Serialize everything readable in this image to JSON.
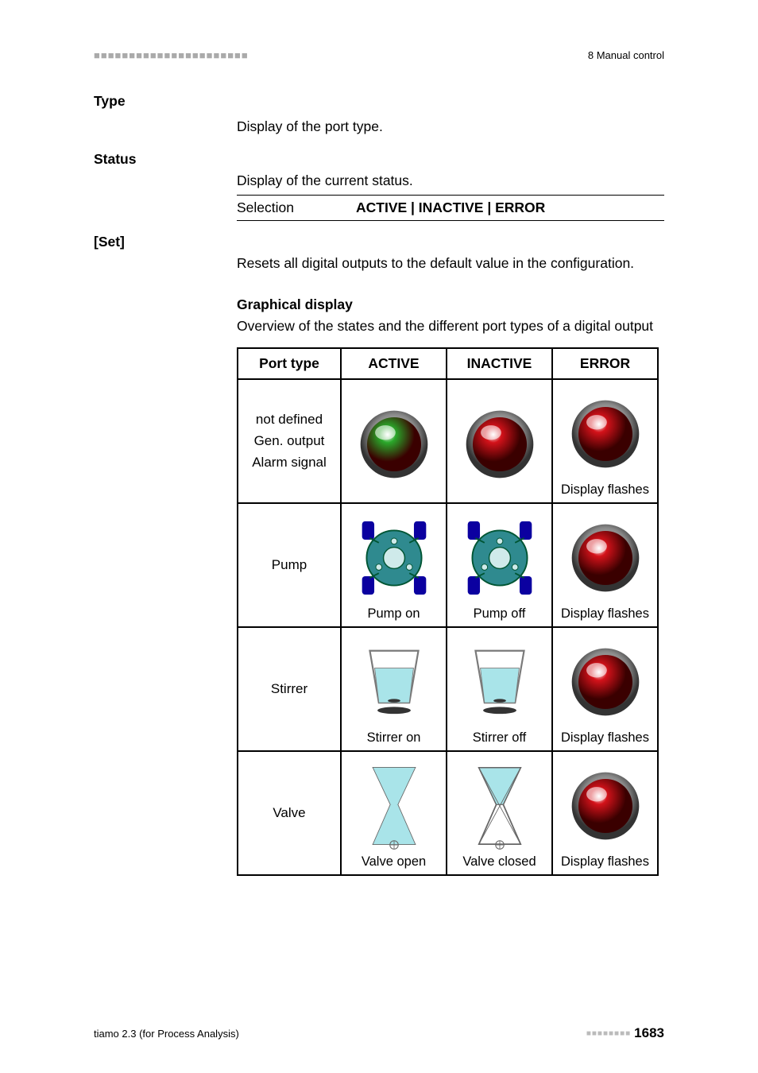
{
  "header": {
    "right": "8 Manual control",
    "dot_color": "#b0b0b0"
  },
  "defs": [
    {
      "term": "Type",
      "desc": "Display of the port type."
    },
    {
      "term": "Status",
      "desc": "Display of the current status.",
      "selection_label": "Selection",
      "selection_value": "ACTIVE | INACTIVE | ERROR"
    },
    {
      "term": "[Set]",
      "desc": "Resets all digital outputs to the default value in the configuration."
    }
  ],
  "graphical": {
    "heading": "Graphical display",
    "sub": "Overview of the states and the different port types of a digital output",
    "cols": [
      "Port type",
      "ACTIVE",
      "INACTIVE",
      "ERROR"
    ],
    "rows": [
      {
        "label_lines": [
          "not defined",
          "Gen. output",
          "Alarm signal"
        ],
        "cells": [
          {
            "icon": "led",
            "color": "#2aa82a",
            "caption": ""
          },
          {
            "icon": "led",
            "color": "#d4121a",
            "caption": ""
          },
          {
            "icon": "led",
            "color": "#d4121a",
            "caption": "Display flashes"
          }
        ]
      },
      {
        "label_lines": [
          "Pump"
        ],
        "cells": [
          {
            "icon": "pump",
            "body": "#2f8a8f",
            "ports": "#0b00a0",
            "caption": "Pump on"
          },
          {
            "icon": "pump",
            "body": "#2f8a8f",
            "ports": "#0b00a0",
            "caption": "Pump off"
          },
          {
            "icon": "led",
            "color": "#d4121a",
            "caption": "Display flashes"
          }
        ]
      },
      {
        "label_lines": [
          "Stirrer"
        ],
        "cells": [
          {
            "icon": "stirrer",
            "liquid": "#a9e4e9",
            "vessel": "#7a7a7a",
            "caption": "Stirrer on"
          },
          {
            "icon": "stirrer",
            "liquid": "#a9e4e9",
            "vessel": "#7a7a7a",
            "caption": "Stirrer off"
          },
          {
            "icon": "led",
            "color": "#d4121a",
            "caption": "Display flashes"
          }
        ]
      },
      {
        "label_lines": [
          "Valve"
        ],
        "cells": [
          {
            "icon": "valve",
            "liquid": "#a9e4e9",
            "outline": "#666",
            "open": true,
            "caption": "Valve open"
          },
          {
            "icon": "valve",
            "liquid": "#a9e4e9",
            "outline": "#666",
            "open": false,
            "caption": "Valve closed"
          },
          {
            "icon": "led",
            "color": "#d4121a",
            "caption": "Display flashes"
          }
        ]
      }
    ]
  },
  "footer": {
    "left": "tiamo 2.3 (for Process Analysis)",
    "page": "1683"
  }
}
